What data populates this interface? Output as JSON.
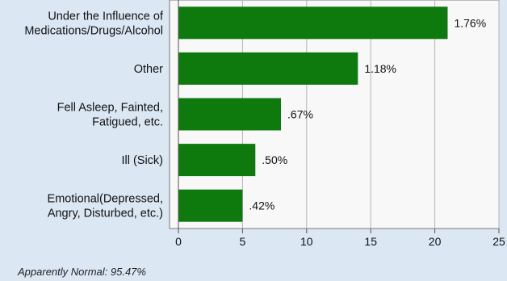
{
  "chart_data": {
    "type": "bar",
    "orientation": "horizontal",
    "categories": [
      [
        "Under the Influence of",
        "Medications/Drugs/Alcohol"
      ],
      [
        "Other"
      ],
      [
        "Fell Asleep, Fainted,",
        "Fatigued, etc."
      ],
      [
        "Ill (Sick)"
      ],
      [
        "Emotional(Depressed,",
        "Angry, Disturbed, etc.)"
      ]
    ],
    "values": [
      21,
      14,
      8,
      6,
      5
    ],
    "data_labels": [
      "1.76%",
      "1.18%",
      ".67%",
      ".50%",
      ".42%"
    ],
    "xticks": [
      "0",
      "5",
      "10",
      "15",
      "20",
      "25"
    ],
    "xlim": [
      0,
      25
    ],
    "grid": true,
    "bar_color": "#0e7a0e",
    "plot_bg": "#f8f8f8",
    "page_bg": "#dbe7f3",
    "footnote": "Apparently Normal: 95.47%"
  }
}
